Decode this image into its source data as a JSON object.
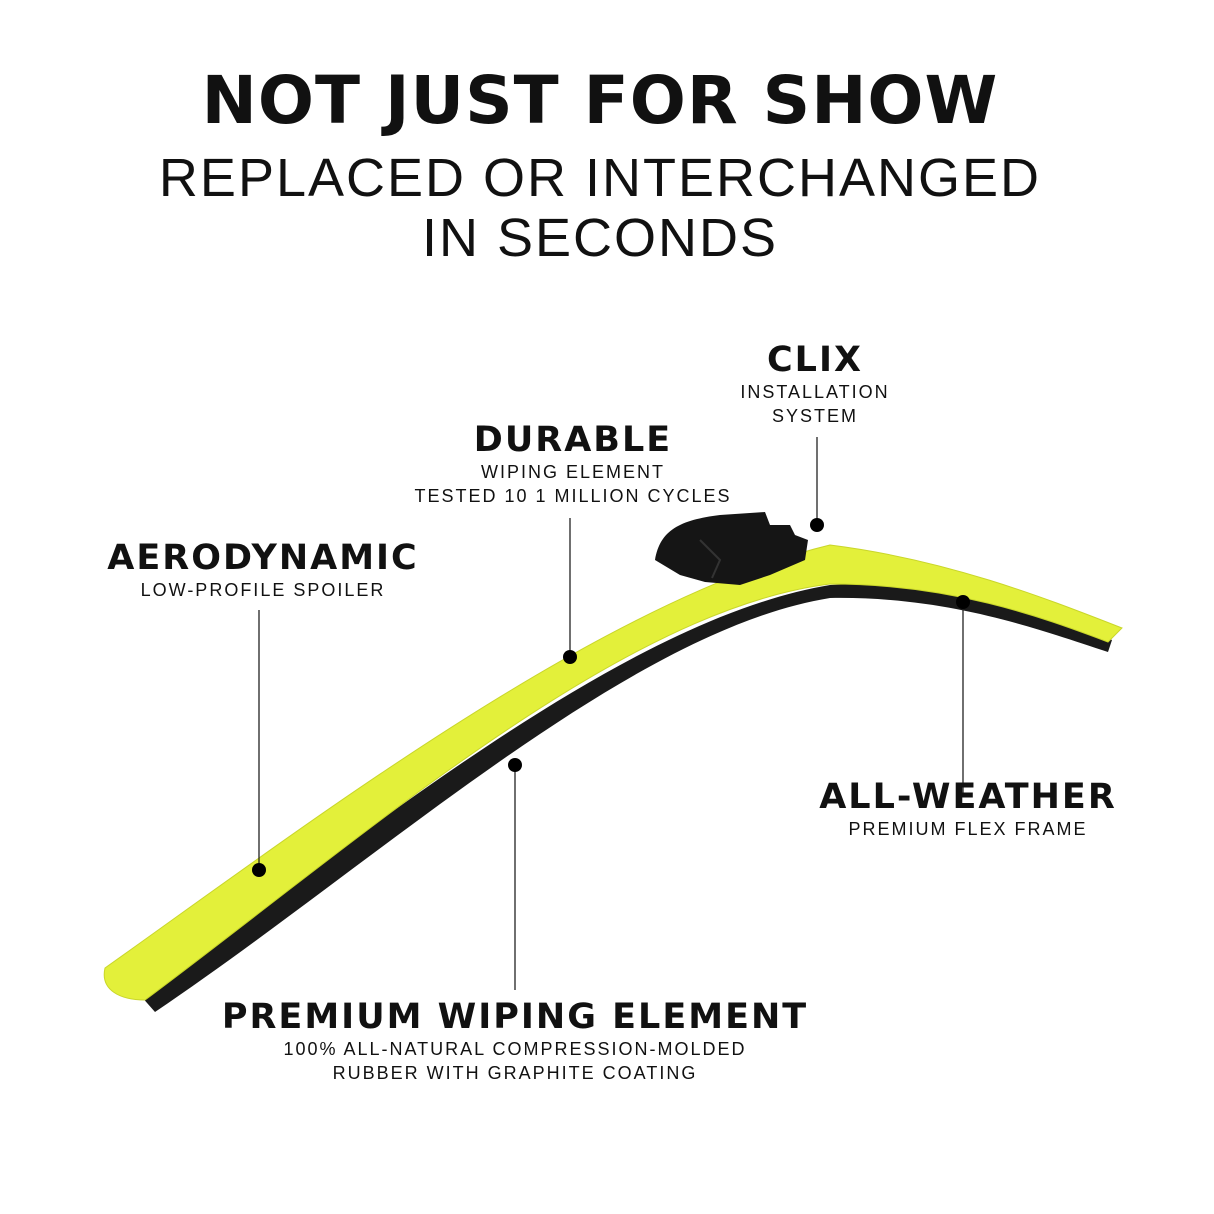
{
  "header": {
    "title": "NOT JUST FOR SHOW",
    "subtitle_line1": "REPLACED OR INTERCHANGED",
    "subtitle_line2": "IN SECONDS"
  },
  "callouts": {
    "clix": {
      "title": "CLIX",
      "line1": "INSTALLATION",
      "line2": "SYSTEM"
    },
    "durable": {
      "title": "DURABLE",
      "line1": "WIPING ELEMENT",
      "line2": "TESTED 10 1 MILLION CYCLES"
    },
    "aerodynamic": {
      "title": "AERODYNAMIC",
      "line1": "LOW-PROFILE SPOILER"
    },
    "all_weather": {
      "title": "ALL-WEATHER",
      "line1": "PREMIUM FLEX FRAME"
    },
    "premium": {
      "title": "PREMIUM WIPING ELEMENT",
      "line1": "100% ALL-NATURAL COMPRESSION-MOLDED",
      "line2": "RUBBER WITH GRAPHITE COATING"
    }
  },
  "colors": {
    "blade": "#e3f03a",
    "rubber": "#1a1a1a",
    "text": "#111111"
  }
}
